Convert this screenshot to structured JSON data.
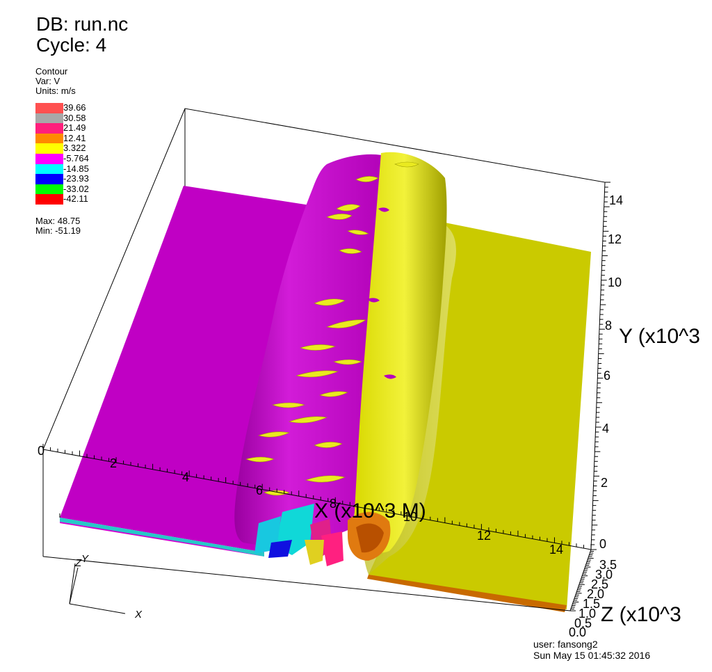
{
  "header": {
    "db": "DB: run.nc",
    "cycle": "Cycle: 4"
  },
  "legend": {
    "plot_type": "Contour",
    "var": "Var: V",
    "units": "Units: m/s",
    "levels": [
      {
        "value": "39.66",
        "color": "#ff5050"
      },
      {
        "value": "30.58",
        "color": "#a8a8a8"
      },
      {
        "value": "21.49",
        "color": "#ff1f7c"
      },
      {
        "value": "12.41",
        "color": "#ff8a00"
      },
      {
        "value": "3.322",
        "color": "#ffff00"
      },
      {
        "value": "-5.764",
        "color": "#ff00ff"
      },
      {
        "value": "-14.85",
        "color": "#00ffff"
      },
      {
        "value": "-23.93",
        "color": "#0000ff"
      },
      {
        "value": "-33.02",
        "color": "#00ff00"
      },
      {
        "value": "-42.11",
        "color": "#ff0000"
      }
    ],
    "max": "Max:  48.75",
    "min": "Min: -51.19"
  },
  "axes": {
    "x_title": "X (x10^3 M)",
    "y_title": "Y (x10^3",
    "z_title": "Z (x10^3",
    "x_ticks": [
      "0",
      "2",
      "4",
      "6",
      "8",
      "10",
      "12",
      "14"
    ],
    "y_ticks": [
      "0",
      "2",
      "4",
      "6",
      "8",
      "10",
      "12",
      "14"
    ],
    "z_ticks": [
      "0.0",
      "0.5",
      "1.0",
      "1.5",
      "2.0",
      "2.5",
      "3.0",
      "3.5"
    ]
  },
  "triad": {
    "x": "X",
    "y": "Y",
    "z": "Z"
  },
  "footer": {
    "user": "user: fansong2",
    "date": "Sun May 15 01:45:32 2016"
  },
  "colors": {
    "magenta_surface": "#c400c4",
    "yellow_surface": "#c8c800"
  }
}
